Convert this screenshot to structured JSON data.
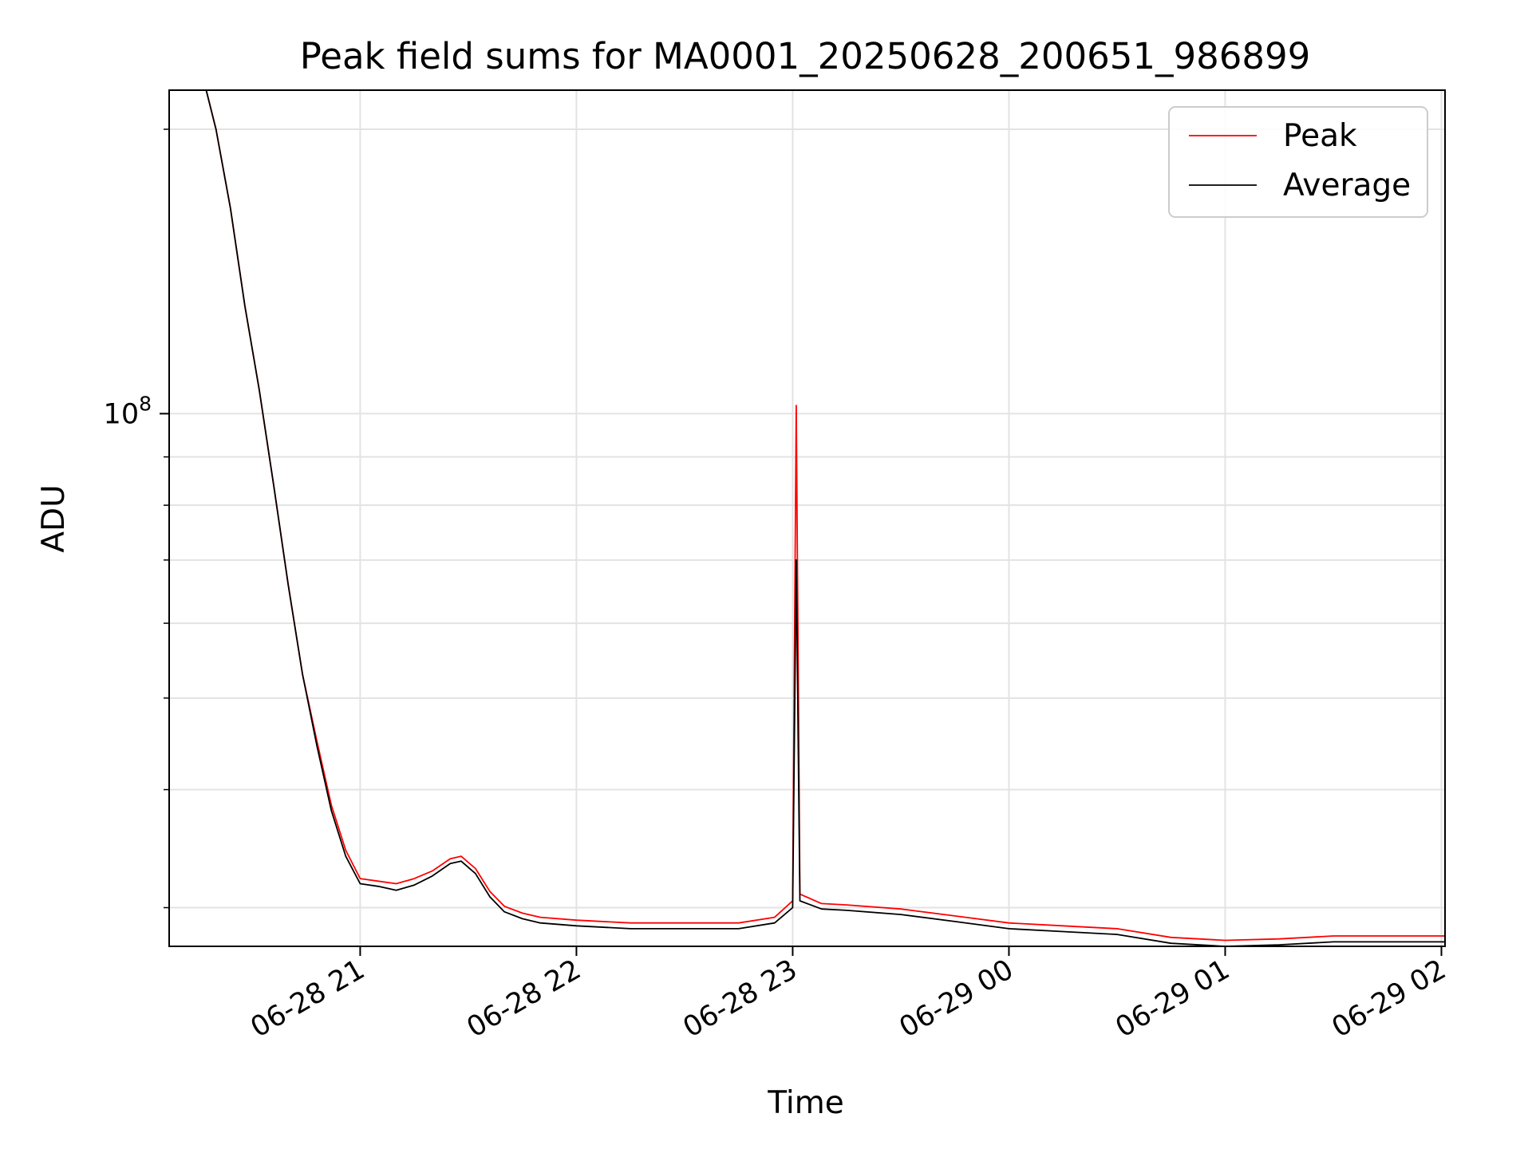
{
  "chart_data": {
    "type": "line",
    "title": "Peak field sums for MA0001_20250628_200651_986899",
    "xlabel": "Time",
    "ylabel": "ADU",
    "y_scale": "log",
    "grid": true,
    "legend_placement": "top-right",
    "xlim": [
      "2025-06-28 20:07",
      "2025-06-29 02:01"
    ],
    "ylim": [
      27300000,
      220000000
    ],
    "x_ticks": [
      {
        "t": "2025-06-28 21:00",
        "label": "06-28 21"
      },
      {
        "t": "2025-06-28 22:00",
        "label": "06-28 22"
      },
      {
        "t": "2025-06-28 23:00",
        "label": "06-28 23"
      },
      {
        "t": "2025-06-29 00:00",
        "label": "06-29 00"
      },
      {
        "t": "2025-06-29 01:00",
        "label": "06-29 01"
      },
      {
        "t": "2025-06-29 02:00",
        "label": "06-29 02"
      }
    ],
    "y_major_ticks": [
      {
        "value": 100000000,
        "label_base": "10",
        "label_exp": "8"
      }
    ],
    "y_minor_ticks": [
      30000000,
      40000000,
      50000000,
      60000000,
      70000000,
      80000000,
      90000000,
      200000000
    ],
    "series": [
      {
        "name": "Peak",
        "color": "#ff0000",
        "points": [
          [
            "2025-06-28 20:07",
            230000000
          ],
          [
            "2025-06-28 20:16",
            230000000
          ],
          [
            "2025-06-28 20:20",
            200000000
          ],
          [
            "2025-06-28 20:24",
            165000000
          ],
          [
            "2025-06-28 20:28",
            130000000
          ],
          [
            "2025-06-28 20:32",
            106000000
          ],
          [
            "2025-06-28 20:36",
            84000000
          ],
          [
            "2025-06-28 20:40",
            66000000
          ],
          [
            "2025-06-28 20:44",
            53000000
          ],
          [
            "2025-06-28 20:48",
            45000000
          ],
          [
            "2025-06-28 20:52",
            38500000
          ],
          [
            "2025-06-28 20:56",
            34500000
          ],
          [
            "2025-06-28 21:00",
            32200000
          ],
          [
            "2025-06-28 21:05",
            32000000
          ],
          [
            "2025-06-28 21:10",
            31800000
          ],
          [
            "2025-06-28 21:15",
            32200000
          ],
          [
            "2025-06-28 21:20",
            32800000
          ],
          [
            "2025-06-28 21:25",
            33800000
          ],
          [
            "2025-06-28 21:28",
            34000000
          ],
          [
            "2025-06-28 21:32",
            33000000
          ],
          [
            "2025-06-28 21:36",
            31200000
          ],
          [
            "2025-06-28 21:40",
            30100000
          ],
          [
            "2025-06-28 21:45",
            29600000
          ],
          [
            "2025-06-28 21:50",
            29300000
          ],
          [
            "2025-06-28 22:00",
            29100000
          ],
          [
            "2025-06-28 22:15",
            28900000
          ],
          [
            "2025-06-28 22:30",
            28900000
          ],
          [
            "2025-06-28 22:45",
            28900000
          ],
          [
            "2025-06-28 22:55",
            29300000
          ],
          [
            "2025-06-28 23:00",
            30500000
          ],
          [
            "2025-06-28 23:01",
            102000000
          ],
          [
            "2025-06-28 23:02",
            31000000
          ],
          [
            "2025-06-28 23:08",
            30300000
          ],
          [
            "2025-06-28 23:15",
            30200000
          ],
          [
            "2025-06-28 23:30",
            29900000
          ],
          [
            "2025-06-28 23:45",
            29400000
          ],
          [
            "2025-06-29 00:00",
            28900000
          ],
          [
            "2025-06-29 00:15",
            28700000
          ],
          [
            "2025-06-29 00:30",
            28500000
          ],
          [
            "2025-06-29 00:45",
            27900000
          ],
          [
            "2025-06-29 01:00",
            27700000
          ],
          [
            "2025-06-29 01:15",
            27800000
          ],
          [
            "2025-06-29 01:30",
            28000000
          ],
          [
            "2025-06-29 01:45",
            28000000
          ],
          [
            "2025-06-29 02:01",
            28000000
          ]
        ]
      },
      {
        "name": "Average",
        "color": "#000000",
        "points": [
          [
            "2025-06-28 20:07",
            230000000
          ],
          [
            "2025-06-28 20:16",
            230000000
          ],
          [
            "2025-06-28 20:20",
            200000000
          ],
          [
            "2025-06-28 20:24",
            165000000
          ],
          [
            "2025-06-28 20:28",
            130000000
          ],
          [
            "2025-06-28 20:32",
            106000000
          ],
          [
            "2025-06-28 20:36",
            84000000
          ],
          [
            "2025-06-28 20:40",
            66000000
          ],
          [
            "2025-06-28 20:44",
            53000000
          ],
          [
            "2025-06-28 20:48",
            44500000
          ],
          [
            "2025-06-28 20:52",
            38000000
          ],
          [
            "2025-06-28 20:56",
            34000000
          ],
          [
            "2025-06-28 21:00",
            31800000
          ],
          [
            "2025-06-28 21:05",
            31600000
          ],
          [
            "2025-06-28 21:10",
            31300000
          ],
          [
            "2025-06-28 21:15",
            31700000
          ],
          [
            "2025-06-28 21:20",
            32400000
          ],
          [
            "2025-06-28 21:25",
            33400000
          ],
          [
            "2025-06-28 21:28",
            33600000
          ],
          [
            "2025-06-28 21:32",
            32600000
          ],
          [
            "2025-06-28 21:36",
            30800000
          ],
          [
            "2025-06-28 21:40",
            29700000
          ],
          [
            "2025-06-28 21:45",
            29200000
          ],
          [
            "2025-06-28 21:50",
            28900000
          ],
          [
            "2025-06-28 22:00",
            28700000
          ],
          [
            "2025-06-28 22:15",
            28500000
          ],
          [
            "2025-06-28 22:30",
            28500000
          ],
          [
            "2025-06-28 22:45",
            28500000
          ],
          [
            "2025-06-28 22:55",
            28900000
          ],
          [
            "2025-06-28 23:00",
            30000000
          ],
          [
            "2025-06-28 23:01",
            70000000
          ],
          [
            "2025-06-28 23:02",
            30500000
          ],
          [
            "2025-06-28 23:08",
            29900000
          ],
          [
            "2025-06-28 23:15",
            29800000
          ],
          [
            "2025-06-28 23:30",
            29500000
          ],
          [
            "2025-06-28 23:45",
            29000000
          ],
          [
            "2025-06-29 00:00",
            28500000
          ],
          [
            "2025-06-29 00:15",
            28300000
          ],
          [
            "2025-06-29 00:30",
            28100000
          ],
          [
            "2025-06-29 00:45",
            27500000
          ],
          [
            "2025-06-29 01:00",
            27300000
          ],
          [
            "2025-06-29 01:15",
            27400000
          ],
          [
            "2025-06-29 01:30",
            27600000
          ],
          [
            "2025-06-29 01:45",
            27600000
          ],
          [
            "2025-06-29 02:01",
            27600000
          ]
        ]
      }
    ]
  }
}
